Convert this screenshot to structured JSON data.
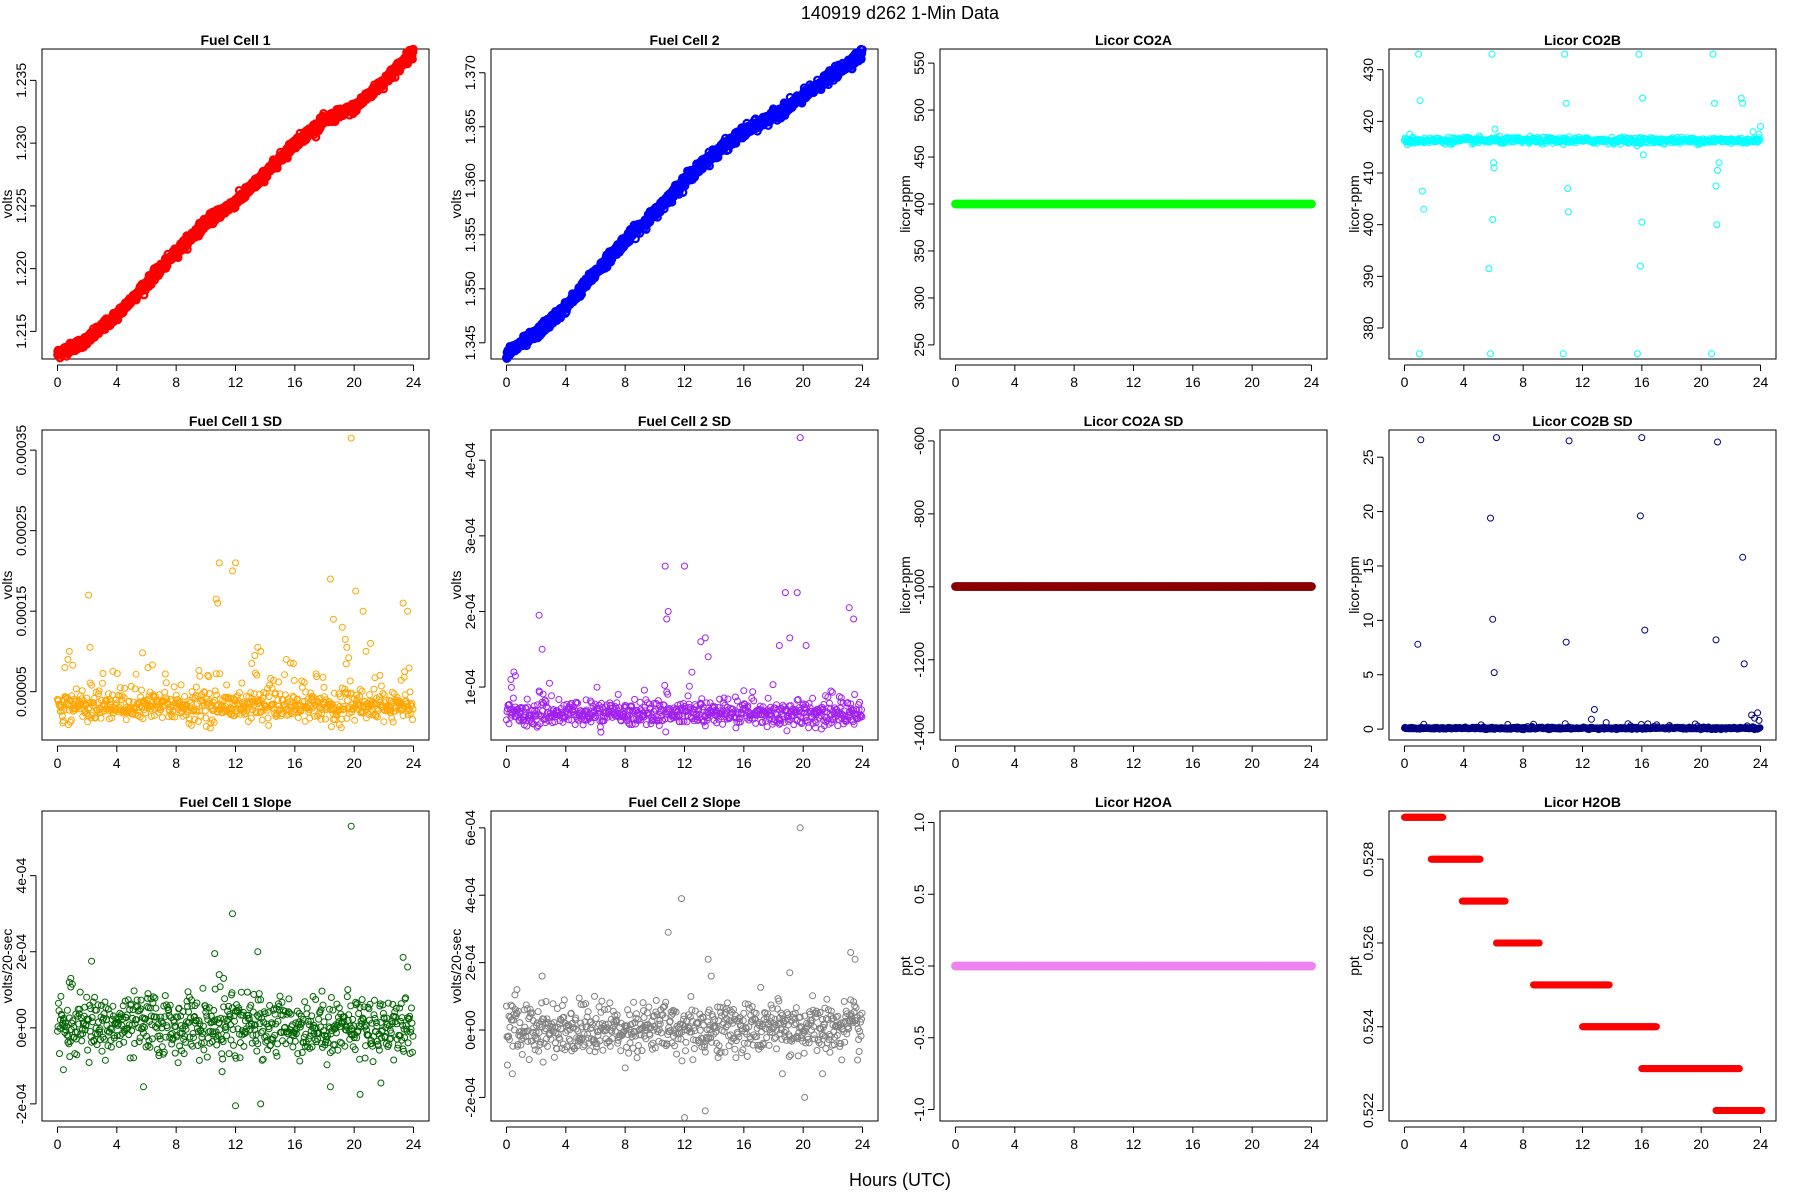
{
  "title": "140919   d262   1-Min Data",
  "xlabel": "Hours (UTC)",
  "chart_data": [
    {
      "type": "scatter",
      "title": "Fuel Cell 1",
      "ylabel": "volts",
      "color": "#ff0000",
      "size": "heavy",
      "xlim": [
        0,
        24
      ],
      "ylim": [
        1.2128,
        1.2375
      ],
      "yticks": [
        1.215,
        1.22,
        1.225,
        1.23,
        1.235
      ],
      "ytick_labels": [
        "1.215",
        "1.220",
        "1.225",
        "1.230",
        "1.235"
      ],
      "shape": "trend",
      "x": [
        0,
        2,
        4,
        6,
        8,
        10,
        12,
        14,
        16,
        18,
        20,
        22,
        24
      ],
      "y": [
        1.2132,
        1.2143,
        1.2163,
        1.2188,
        1.2213,
        1.2237,
        1.2253,
        1.2275,
        1.23,
        1.2318,
        1.2328,
        1.2349,
        1.2373
      ],
      "noise": 0.0002
    },
    {
      "type": "scatter",
      "title": "Fuel Cell 2",
      "ylabel": "volts",
      "color": "#0000ff",
      "size": "heavy",
      "xlim": [
        0,
        24
      ],
      "ylim": [
        1.3435,
        1.3722
      ],
      "yticks": [
        1.345,
        1.35,
        1.355,
        1.36,
        1.365,
        1.37
      ],
      "ytick_labels": [
        "1.345",
        "1.350",
        "1.355",
        "1.360",
        "1.365",
        "1.370"
      ],
      "shape": "trend",
      "x": [
        0,
        2,
        4,
        6,
        8,
        10,
        12,
        14,
        16,
        18,
        20,
        22,
        24
      ],
      "y": [
        1.344,
        1.3458,
        1.3483,
        1.3515,
        1.3545,
        1.357,
        1.36,
        1.3625,
        1.3645,
        1.366,
        1.3678,
        1.3698,
        1.3718
      ],
      "noise": 0.00025
    },
    {
      "type": "scatter",
      "title": "Licor CO2A",
      "ylabel": "licor-ppm",
      "color": "#00ff00",
      "size": "heavy",
      "xlim": [
        0,
        24
      ],
      "ylim": [
        235,
        565
      ],
      "yticks": [
        250,
        300,
        350,
        400,
        450,
        500,
        550
      ],
      "ytick_labels": [
        "250",
        "300",
        "350",
        "400",
        "450",
        "500",
        "550"
      ],
      "shape": "flat",
      "value": 400,
      "noise": 0
    },
    {
      "type": "scatter",
      "title": "Licor CO2B",
      "ylabel": "licor-ppm",
      "color": "#00ffff",
      "size": "normal",
      "xlim": [
        0,
        24
      ],
      "ylim": [
        374,
        434
      ],
      "yticks": [
        380,
        390,
        400,
        410,
        420,
        430
      ],
      "ytick_labels": [
        "380",
        "390",
        "400",
        "410",
        "420",
        "430"
      ],
      "shape": "flat",
      "value": 416.3,
      "noise": 0.3,
      "extra_x": [
        0.1,
        0.2,
        0.35,
        1.0,
        0.95,
        1.05,
        1.2,
        1.3,
        5.7,
        5.8,
        5.9,
        5.95,
        6.0,
        6.1,
        6.05,
        10.7,
        10.8,
        10.9,
        11.0,
        11.05,
        11.1,
        15.7,
        15.8,
        15.9,
        16.0,
        16.05,
        16.1,
        20.7,
        20.8,
        20.9,
        21.0,
        21.05,
        21.1,
        21.2,
        22.7,
        22.8,
        23.5,
        23.7,
        23.9,
        24.0
      ],
      "extra_y": [
        416,
        415.5,
        417.5,
        375,
        433,
        424,
        406.5,
        403,
        391.5,
        375,
        433,
        401,
        412,
        418.5,
        411,
        375,
        433,
        423.5,
        407,
        402.5,
        417,
        375,
        433,
        392,
        400.5,
        424.5,
        413.5,
        375,
        433,
        423.5,
        407.5,
        400,
        410.5,
        412,
        424.5,
        423.5,
        418,
        416,
        417.5,
        419
      ]
    },
    {
      "type": "scatter",
      "title": "Fuel Cell 1 SD",
      "ylabel": "volts",
      "color": "#ffa500",
      "size": "normal",
      "xlim": [
        0,
        24
      ],
      "ylim": [
        -1e-05,
        0.000375
      ],
      "yticks": [
        5e-05,
        0.00015,
        0.00025,
        0.00035
      ],
      "ytick_labels": [
        "0.00005",
        "0.00015",
        "0.00025",
        "0.00035"
      ],
      "shape": "band",
      "value": 3.2e-05,
      "noise": 9e-06,
      "spike_rate": 0.12,
      "spike_max": 5e-05,
      "extra_x": [
        0.5,
        0.7,
        0.8,
        2.1,
        2.2,
        6.1,
        10.7,
        10.8,
        10.9,
        11.8,
        12.0,
        13.1,
        13.3,
        13.5,
        13.7,
        15.9,
        18.4,
        18.6,
        19.2,
        19.4,
        19.5,
        19.8,
        20.1,
        20.6,
        20.8,
        21.1,
        23.3,
        23.6
      ],
      "extra_y": [
        8e-05,
        9e-05,
        0.0001,
        0.00017,
        0.000105,
        8e-05,
        0.000165,
        0.00016,
        0.00021,
        0.0002,
        0.00021,
        8.5e-05,
        9.5e-05,
        0.000105,
        0.0001,
        8.5e-05,
        0.00019,
        0.00014,
        0.00013,
        0.000115,
        0.000105,
        0.000365,
        0.000175,
        0.00015,
        0.0001,
        0.00011,
        0.00016,
        0.00015
      ]
    },
    {
      "type": "scatter",
      "title": "Fuel Cell 2 SD",
      "ylabel": "volts",
      "color": "#a020f0",
      "size": "normal",
      "xlim": [
        0,
        24
      ],
      "ylim": [
        3e-05,
        0.00044
      ],
      "yticks": [
        0.0001,
        0.0002,
        0.0003,
        0.0004
      ],
      "ytick_labels": [
        "1e-04",
        "2e-04",
        "3e-04",
        "4e-04"
      ],
      "shape": "band",
      "value": 6.5e-05,
      "noise": 8e-06,
      "spike_rate": 0.06,
      "spike_max": 3e-05,
      "extra_x": [
        0.3,
        0.5,
        0.6,
        2.2,
        2.4,
        10.7,
        10.8,
        10.9,
        12.0,
        13.1,
        13.4,
        13.6,
        18.4,
        18.8,
        19.1,
        19.6,
        19.8,
        20.2,
        23.1,
        23.4
      ],
      "extra_y": [
        0.00011,
        0.00012,
        0.000115,
        0.000195,
        0.00015,
        0.00026,
        0.00019,
        0.0002,
        0.00026,
        0.00016,
        0.000165,
        0.00014,
        0.000155,
        0.000225,
        0.000165,
        0.000225,
        0.00043,
        0.000155,
        0.000205,
        0.00019
      ]
    },
    {
      "type": "scatter",
      "title": "Licor CO2A SD",
      "ylabel": "licor-ppm",
      "color": "#8b0000",
      "size": "heavy",
      "xlim": [
        0,
        24
      ],
      "ylim": [
        -1420,
        -570
      ],
      "yticks": [
        -1400,
        -1200,
        -1000,
        -800,
        -600
      ],
      "ytick_labels": [
        "-1400",
        "-1200",
        "-1000",
        "-800",
        "-600"
      ],
      "shape": "flat",
      "value": -999,
      "noise": 0
    },
    {
      "type": "scatter",
      "title": "Licor CO2B SD",
      "ylabel": "licor-ppm",
      "color": "#000080",
      "size": "normal",
      "xlim": [
        0,
        24
      ],
      "ylim": [
        -1,
        27.5
      ],
      "yticks": [
        0,
        5,
        10,
        15,
        20,
        25
      ],
      "ytick_labels": [
        "0",
        "5",
        "10",
        "15",
        "20",
        "25"
      ],
      "shape": "band",
      "value": 0.08,
      "noise": 0.05,
      "spike_rate": 0.02,
      "spike_max": 0.5,
      "extra_x": [
        0.9,
        1.1,
        5.8,
        5.95,
        6.05,
        6.2,
        10.9,
        11.1,
        12.6,
        12.8,
        15.9,
        16.0,
        16.2,
        21.0,
        21.1,
        22.8,
        22.9,
        23.4,
        23.6,
        23.8,
        23.9
      ],
      "extra_y": [
        7.8,
        26.6,
        19.4,
        10.1,
        5.2,
        26.8,
        8.0,
        26.5,
        0.9,
        1.8,
        19.6,
        26.8,
        9.1,
        8.2,
        26.4,
        15.8,
        6.0,
        1.3,
        1.0,
        1.5,
        0.8
      ]
    },
    {
      "type": "scatter",
      "title": "Fuel Cell 1 Slope",
      "ylabel": "volts/20-sec",
      "color": "#006400",
      "size": "normal",
      "xlim": [
        0,
        24
      ],
      "ylim": [
        -0.000245,
        0.00057
      ],
      "yticks": [
        -0.0002,
        0,
        0.0002,
        0.0004
      ],
      "ytick_labels": [
        "-2e-04",
        "0e+00",
        "2e-04",
        "4e-04"
      ],
      "shape": "band",
      "value": 5e-06,
      "noise": 4e-05,
      "spike_rate": 0.0,
      "spike_max": 0,
      "extra_x": [
        0.4,
        0.8,
        2.3,
        5.8,
        6.1,
        10.6,
        10.9,
        11.1,
        11.8,
        12.0,
        13.5,
        13.7,
        18.4,
        19.8,
        20.4,
        21.8,
        23.3,
        23.6,
        0.9,
        8.8,
        11.2
      ],
      "extra_y": [
        -0.00011,
        0.00012,
        0.000175,
        -0.000155,
        9e-05,
        0.000195,
        0.00014,
        -0.000115,
        0.0003,
        -0.000205,
        0.0002,
        -0.0002,
        -0.000155,
        0.00053,
        -0.000175,
        -0.000145,
        0.000185,
        0.00016,
        0.00013,
        9.5e-05,
        0.00013
      ]
    },
    {
      "type": "scatter",
      "title": "Fuel Cell 2 Slope",
      "ylabel": "volts/20-sec",
      "color": "#808080",
      "size": "normal",
      "xlim": [
        0,
        24
      ],
      "ylim": [
        -0.00027,
        0.00065
      ],
      "yticks": [
        -0.0002,
        0,
        0.0002,
        0.0004,
        0.0006
      ],
      "ytick_labels": [
        "-2e-04",
        "0e+00",
        "2e-04",
        "4e-04",
        "6e-04"
      ],
      "shape": "band",
      "value": 5e-06,
      "noise": 4e-05,
      "spike_rate": 0.0,
      "spike_max": 0,
      "extra_x": [
        0.4,
        0.7,
        2.4,
        10.9,
        11.8,
        12.0,
        13.4,
        13.6,
        13.8,
        18.6,
        19.1,
        19.8,
        20.1,
        21.3,
        23.2,
        23.5
      ],
      "extra_y": [
        -0.00013,
        0.00012,
        0.00016,
        0.00029,
        0.00039,
        -0.00026,
        -0.00024,
        0.00021,
        0.00016,
        -0.00013,
        0.00017,
        0.0006,
        -0.0002,
        -0.00013,
        0.00023,
        0.00021
      ]
    },
    {
      "type": "scatter",
      "title": "Licor H2OA",
      "ylabel": "ppt",
      "color": "#ee82ee",
      "size": "heavy",
      "xlim": [
        0,
        24
      ],
      "ylim": [
        -1.08,
        1.08
      ],
      "yticks": [
        -1.0,
        -0.5,
        0,
        0.5,
        1.0
      ],
      "ytick_labels": [
        "-1.0",
        "-0.5",
        "0.0",
        "0.5",
        "1.0"
      ],
      "shape": "flat",
      "value": 0,
      "noise": 0
    },
    {
      "type": "scatter",
      "title": "Licor H2OB",
      "ylabel": "ppt",
      "color": "#ff0000",
      "size": "normal",
      "xlim": [
        0,
        24
      ],
      "ylim": [
        0.52175,
        0.52915
      ],
      "yticks": [
        0.522,
        0.524,
        0.526,
        0.528
      ],
      "ytick_labels": [
        "0.522",
        "0.524",
        "0.526",
        "0.528"
      ],
      "shape": "steps",
      "steps": [
        [
          0,
          2.6,
          0.529
        ],
        [
          1.8,
          5.1,
          0.528
        ],
        [
          3.9,
          6.8,
          0.527
        ],
        [
          6.2,
          9.1,
          0.526
        ],
        [
          8.7,
          13.8,
          0.525
        ],
        [
          12.0,
          17.0,
          0.524
        ],
        [
          16.0,
          22.6,
          0.523
        ],
        [
          21.0,
          24.1,
          0.522
        ]
      ]
    }
  ]
}
